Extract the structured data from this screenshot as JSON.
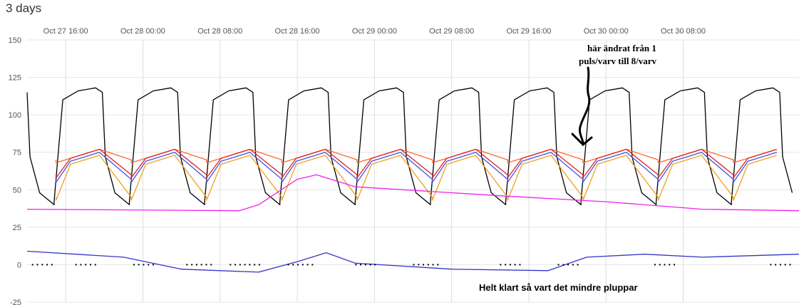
{
  "header": {
    "title": "3 days"
  },
  "chart_data": {
    "type": "line",
    "x_tick_labels": [
      "Oct 27 16:00",
      "Oct 28 00:00",
      "Oct 28 08:00",
      "Oct 28 16:00",
      "Oct 29 00:00",
      "Oct 29 08:00",
      "Oct 29 16:00",
      "Oct 30 00:00",
      "Oct 30 08:00"
    ],
    "y_ticks": [
      150,
      125,
      100,
      75,
      50,
      25,
      0,
      -25
    ],
    "ylim": [
      -25,
      150
    ],
    "x_hours_range": [
      -4,
      76
    ],
    "grid": true,
    "annotations": [
      {
        "name": "pulse-note",
        "lines": [
          "här ändrat från 1",
          "puls/varv till 8/varv"
        ]
      },
      {
        "name": "bottom-note",
        "lines": [
          "Helt klart så vart det mindre pluppar"
        ]
      }
    ],
    "series": [
      {
        "color": "#000000",
        "pattern": "sawtooth",
        "low": 40,
        "high": 118
      },
      {
        "color": "#ff6633",
        "pattern": "smooth",
        "low": 68,
        "high": 77
      },
      {
        "color": "#dd2222",
        "pattern": "smooth",
        "low": 58,
        "high": 77
      },
      {
        "color": "#4455dd",
        "pattern": "smooth",
        "low": 55,
        "high": 75
      },
      {
        "color": "#f0a020",
        "pattern": "smooth",
        "low": 43,
        "high": 73
      },
      {
        "color": "#ee22ee",
        "pattern": "trend",
        "points": [
          [
            -4,
            37
          ],
          [
            18,
            36
          ],
          [
            20,
            40
          ],
          [
            24,
            57
          ],
          [
            26,
            60
          ],
          [
            30,
            52
          ],
          [
            45,
            46
          ],
          [
            56,
            42
          ],
          [
            66,
            37
          ],
          [
            76,
            36
          ]
        ]
      },
      {
        "color": "#3333cc",
        "pattern": "trend",
        "points": [
          [
            -4,
            9
          ],
          [
            6,
            5
          ],
          [
            12,
            -3
          ],
          [
            20,
            -5
          ],
          [
            24,
            2
          ],
          [
            27,
            8
          ],
          [
            30,
            1
          ],
          [
            40,
            -3
          ],
          [
            50,
            -4
          ],
          [
            54,
            5
          ],
          [
            60,
            7
          ],
          [
            66,
            5
          ],
          [
            76,
            7
          ]
        ]
      }
    ]
  }
}
